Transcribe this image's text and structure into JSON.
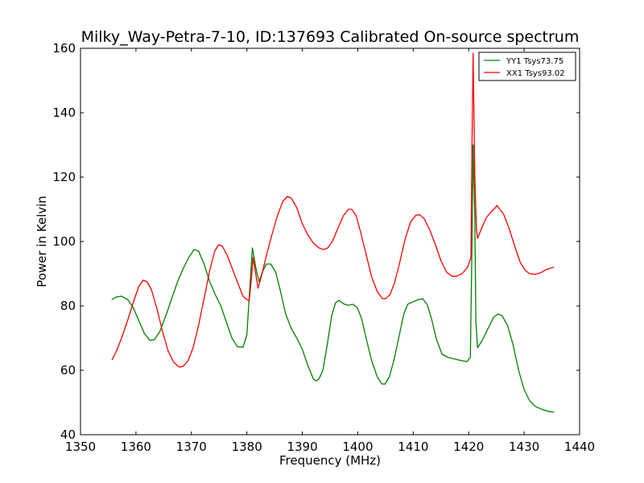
{
  "chart_data": {
    "type": "line",
    "title": "Milky_Way-Petra-7-10, ID:137693 Calibrated On-source spectrum",
    "xlabel": "Frequency (MHz)",
    "ylabel": "Power in Kelvin",
    "xlim": [
      1350,
      1440
    ],
    "ylim": [
      40,
      160
    ],
    "xticks": [
      "1350",
      "1360",
      "1370",
      "1380",
      "1390",
      "1400",
      "1410",
      "1420",
      "1430",
      "1440"
    ],
    "yticks": [
      "40",
      "60",
      "80",
      "100",
      "120",
      "140",
      "160"
    ],
    "grid": false,
    "legend_position": "top-right",
    "series": [
      {
        "name": "YY1 Tsys73.75",
        "color": "#008000",
        "points": [
          [
            1355.7,
            82
          ],
          [
            1356.5,
            82.8
          ],
          [
            1357.4,
            83
          ],
          [
            1358.5,
            82
          ],
          [
            1359.5,
            79.5
          ],
          [
            1360.5,
            75.5
          ],
          [
            1361.5,
            71.5
          ],
          [
            1362.5,
            69.3
          ],
          [
            1363.3,
            69.5
          ],
          [
            1364.3,
            72
          ],
          [
            1365.5,
            77.5
          ],
          [
            1366.5,
            82.5
          ],
          [
            1367.5,
            87.5
          ],
          [
            1368.5,
            91.5
          ],
          [
            1369.5,
            95
          ],
          [
            1370.5,
            97.5
          ],
          [
            1371.3,
            97
          ],
          [
            1372.3,
            93
          ],
          [
            1373.3,
            87.5
          ],
          [
            1374.3,
            83.5
          ],
          [
            1375.3,
            80
          ],
          [
            1376.3,
            75
          ],
          [
            1377.3,
            70
          ],
          [
            1378.3,
            67.3
          ],
          [
            1379.3,
            67.2
          ],
          [
            1380,
            71
          ],
          [
            1380.5,
            85
          ],
          [
            1381,
            98
          ],
          [
            1381.6,
            92
          ],
          [
            1382.2,
            87.5
          ],
          [
            1382.8,
            90.5
          ],
          [
            1383.5,
            93
          ],
          [
            1384.3,
            93
          ],
          [
            1385.2,
            90.5
          ],
          [
            1386,
            85
          ],
          [
            1387,
            77.5
          ],
          [
            1388,
            73
          ],
          [
            1389,
            70
          ],
          [
            1390,
            66.5
          ],
          [
            1391,
            61.5
          ],
          [
            1392,
            57.3
          ],
          [
            1392.5,
            56.7
          ],
          [
            1393,
            57.3
          ],
          [
            1393.7,
            60
          ],
          [
            1394.5,
            68
          ],
          [
            1395.3,
            77
          ],
          [
            1396,
            81
          ],
          [
            1396.6,
            81.7
          ],
          [
            1397.5,
            80.6
          ],
          [
            1398.3,
            80.2
          ],
          [
            1399.1,
            80.5
          ],
          [
            1399.9,
            79.5
          ],
          [
            1400.7,
            76
          ],
          [
            1401.5,
            70
          ],
          [
            1402.5,
            63
          ],
          [
            1403.5,
            58
          ],
          [
            1404.3,
            55.8
          ],
          [
            1404.9,
            55.7
          ],
          [
            1405.7,
            58
          ],
          [
            1406.5,
            63
          ],
          [
            1407.5,
            71
          ],
          [
            1408.3,
            77.5
          ],
          [
            1409,
            80.5
          ],
          [
            1410,
            81.3
          ],
          [
            1411,
            82
          ],
          [
            1411.7,
            82.2
          ],
          [
            1412.5,
            80.5
          ],
          [
            1413.3,
            76
          ],
          [
            1414.2,
            69.5
          ],
          [
            1415.2,
            65
          ],
          [
            1416.3,
            64
          ],
          [
            1417.5,
            63.5
          ],
          [
            1418.7,
            63
          ],
          [
            1419.7,
            62.7
          ],
          [
            1420.3,
            64
          ],
          [
            1420.6,
            100
          ],
          [
            1420.8,
            130
          ],
          [
            1421.1,
            108
          ],
          [
            1421.3,
            75
          ],
          [
            1421.6,
            67
          ],
          [
            1422.5,
            69.5
          ],
          [
            1423.5,
            73
          ],
          [
            1424.5,
            76.5
          ],
          [
            1425.3,
            77.5
          ],
          [
            1426,
            77
          ],
          [
            1427,
            74
          ],
          [
            1428,
            68
          ],
          [
            1429,
            60
          ],
          [
            1430,
            54
          ],
          [
            1431,
            50.5
          ],
          [
            1432,
            48.8
          ],
          [
            1433.3,
            47.8
          ],
          [
            1434.5,
            47.2
          ],
          [
            1435.3,
            47
          ]
        ]
      },
      {
        "name": "XX1 Tsys93.02",
        "color": "#ff0000",
        "points": [
          [
            1355.7,
            63.3
          ],
          [
            1356.5,
            66
          ],
          [
            1357.5,
            70.5
          ],
          [
            1358.5,
            75.5
          ],
          [
            1359.5,
            81
          ],
          [
            1360.5,
            86
          ],
          [
            1361.3,
            88
          ],
          [
            1362,
            87.5
          ],
          [
            1362.8,
            85
          ],
          [
            1363.8,
            79
          ],
          [
            1364.8,
            72
          ],
          [
            1365.8,
            66
          ],
          [
            1366.8,
            62.5
          ],
          [
            1367.8,
            61
          ],
          [
            1368.5,
            61.2
          ],
          [
            1369.4,
            63
          ],
          [
            1370.3,
            67
          ],
          [
            1371.3,
            74
          ],
          [
            1372.3,
            82.5
          ],
          [
            1373.3,
            91
          ],
          [
            1374.2,
            97
          ],
          [
            1374.9,
            99
          ],
          [
            1375.6,
            98.5
          ],
          [
            1376.5,
            95.5
          ],
          [
            1377.5,
            91
          ],
          [
            1378.5,
            86.5
          ],
          [
            1379.3,
            83
          ],
          [
            1380,
            82
          ],
          [
            1380.4,
            81.5
          ],
          [
            1380.8,
            88
          ],
          [
            1381.1,
            95
          ],
          [
            1381.6,
            90
          ],
          [
            1382,
            85.5
          ],
          [
            1382.6,
            89
          ],
          [
            1383.5,
            95.5
          ],
          [
            1384.5,
            102
          ],
          [
            1385.5,
            108
          ],
          [
            1386.5,
            112.5
          ],
          [
            1387.3,
            114
          ],
          [
            1388,
            113.5
          ],
          [
            1389,
            110.5
          ],
          [
            1390,
            105.5
          ],
          [
            1391,
            102
          ],
          [
            1392,
            99.5
          ],
          [
            1393,
            98
          ],
          [
            1393.8,
            97.5
          ],
          [
            1394.6,
            98
          ],
          [
            1395.4,
            100
          ],
          [
            1396.4,
            104
          ],
          [
            1397.4,
            108
          ],
          [
            1398.3,
            110
          ],
          [
            1398.9,
            110
          ],
          [
            1399.7,
            108
          ],
          [
            1400.5,
            103
          ],
          [
            1401.5,
            96
          ],
          [
            1402.5,
            89
          ],
          [
            1403.5,
            84.5
          ],
          [
            1404.4,
            82.3
          ],
          [
            1405,
            82.2
          ],
          [
            1405.8,
            83.5
          ],
          [
            1406.6,
            87
          ],
          [
            1407.5,
            93
          ],
          [
            1408.5,
            100.5
          ],
          [
            1409.5,
            106
          ],
          [
            1410.5,
            108.2
          ],
          [
            1411.2,
            108.3
          ],
          [
            1412,
            107
          ],
          [
            1413,
            103.5
          ],
          [
            1414,
            99
          ],
          [
            1415,
            94
          ],
          [
            1416,
            90.5
          ],
          [
            1417,
            89.2
          ],
          [
            1417.8,
            89.2
          ],
          [
            1418.8,
            90
          ],
          [
            1419.8,
            92
          ],
          [
            1420.4,
            95
          ],
          [
            1420.6,
            130
          ],
          [
            1420.8,
            158.5
          ],
          [
            1421.1,
            120
          ],
          [
            1421.4,
            104
          ],
          [
            1421.6,
            101
          ],
          [
            1422.3,
            104
          ],
          [
            1423.2,
            107.5
          ],
          [
            1424.2,
            109.5
          ],
          [
            1424.8,
            110.5
          ],
          [
            1425.1,
            111.2
          ],
          [
            1425.6,
            110
          ],
          [
            1426.3,
            108.5
          ],
          [
            1427.3,
            104
          ],
          [
            1428.3,
            98.5
          ],
          [
            1429.3,
            93.5
          ],
          [
            1430.2,
            91
          ],
          [
            1431,
            90
          ],
          [
            1432,
            89.8
          ],
          [
            1433,
            90.3
          ],
          [
            1434,
            91.3
          ],
          [
            1435.3,
            92
          ]
        ]
      }
    ]
  }
}
